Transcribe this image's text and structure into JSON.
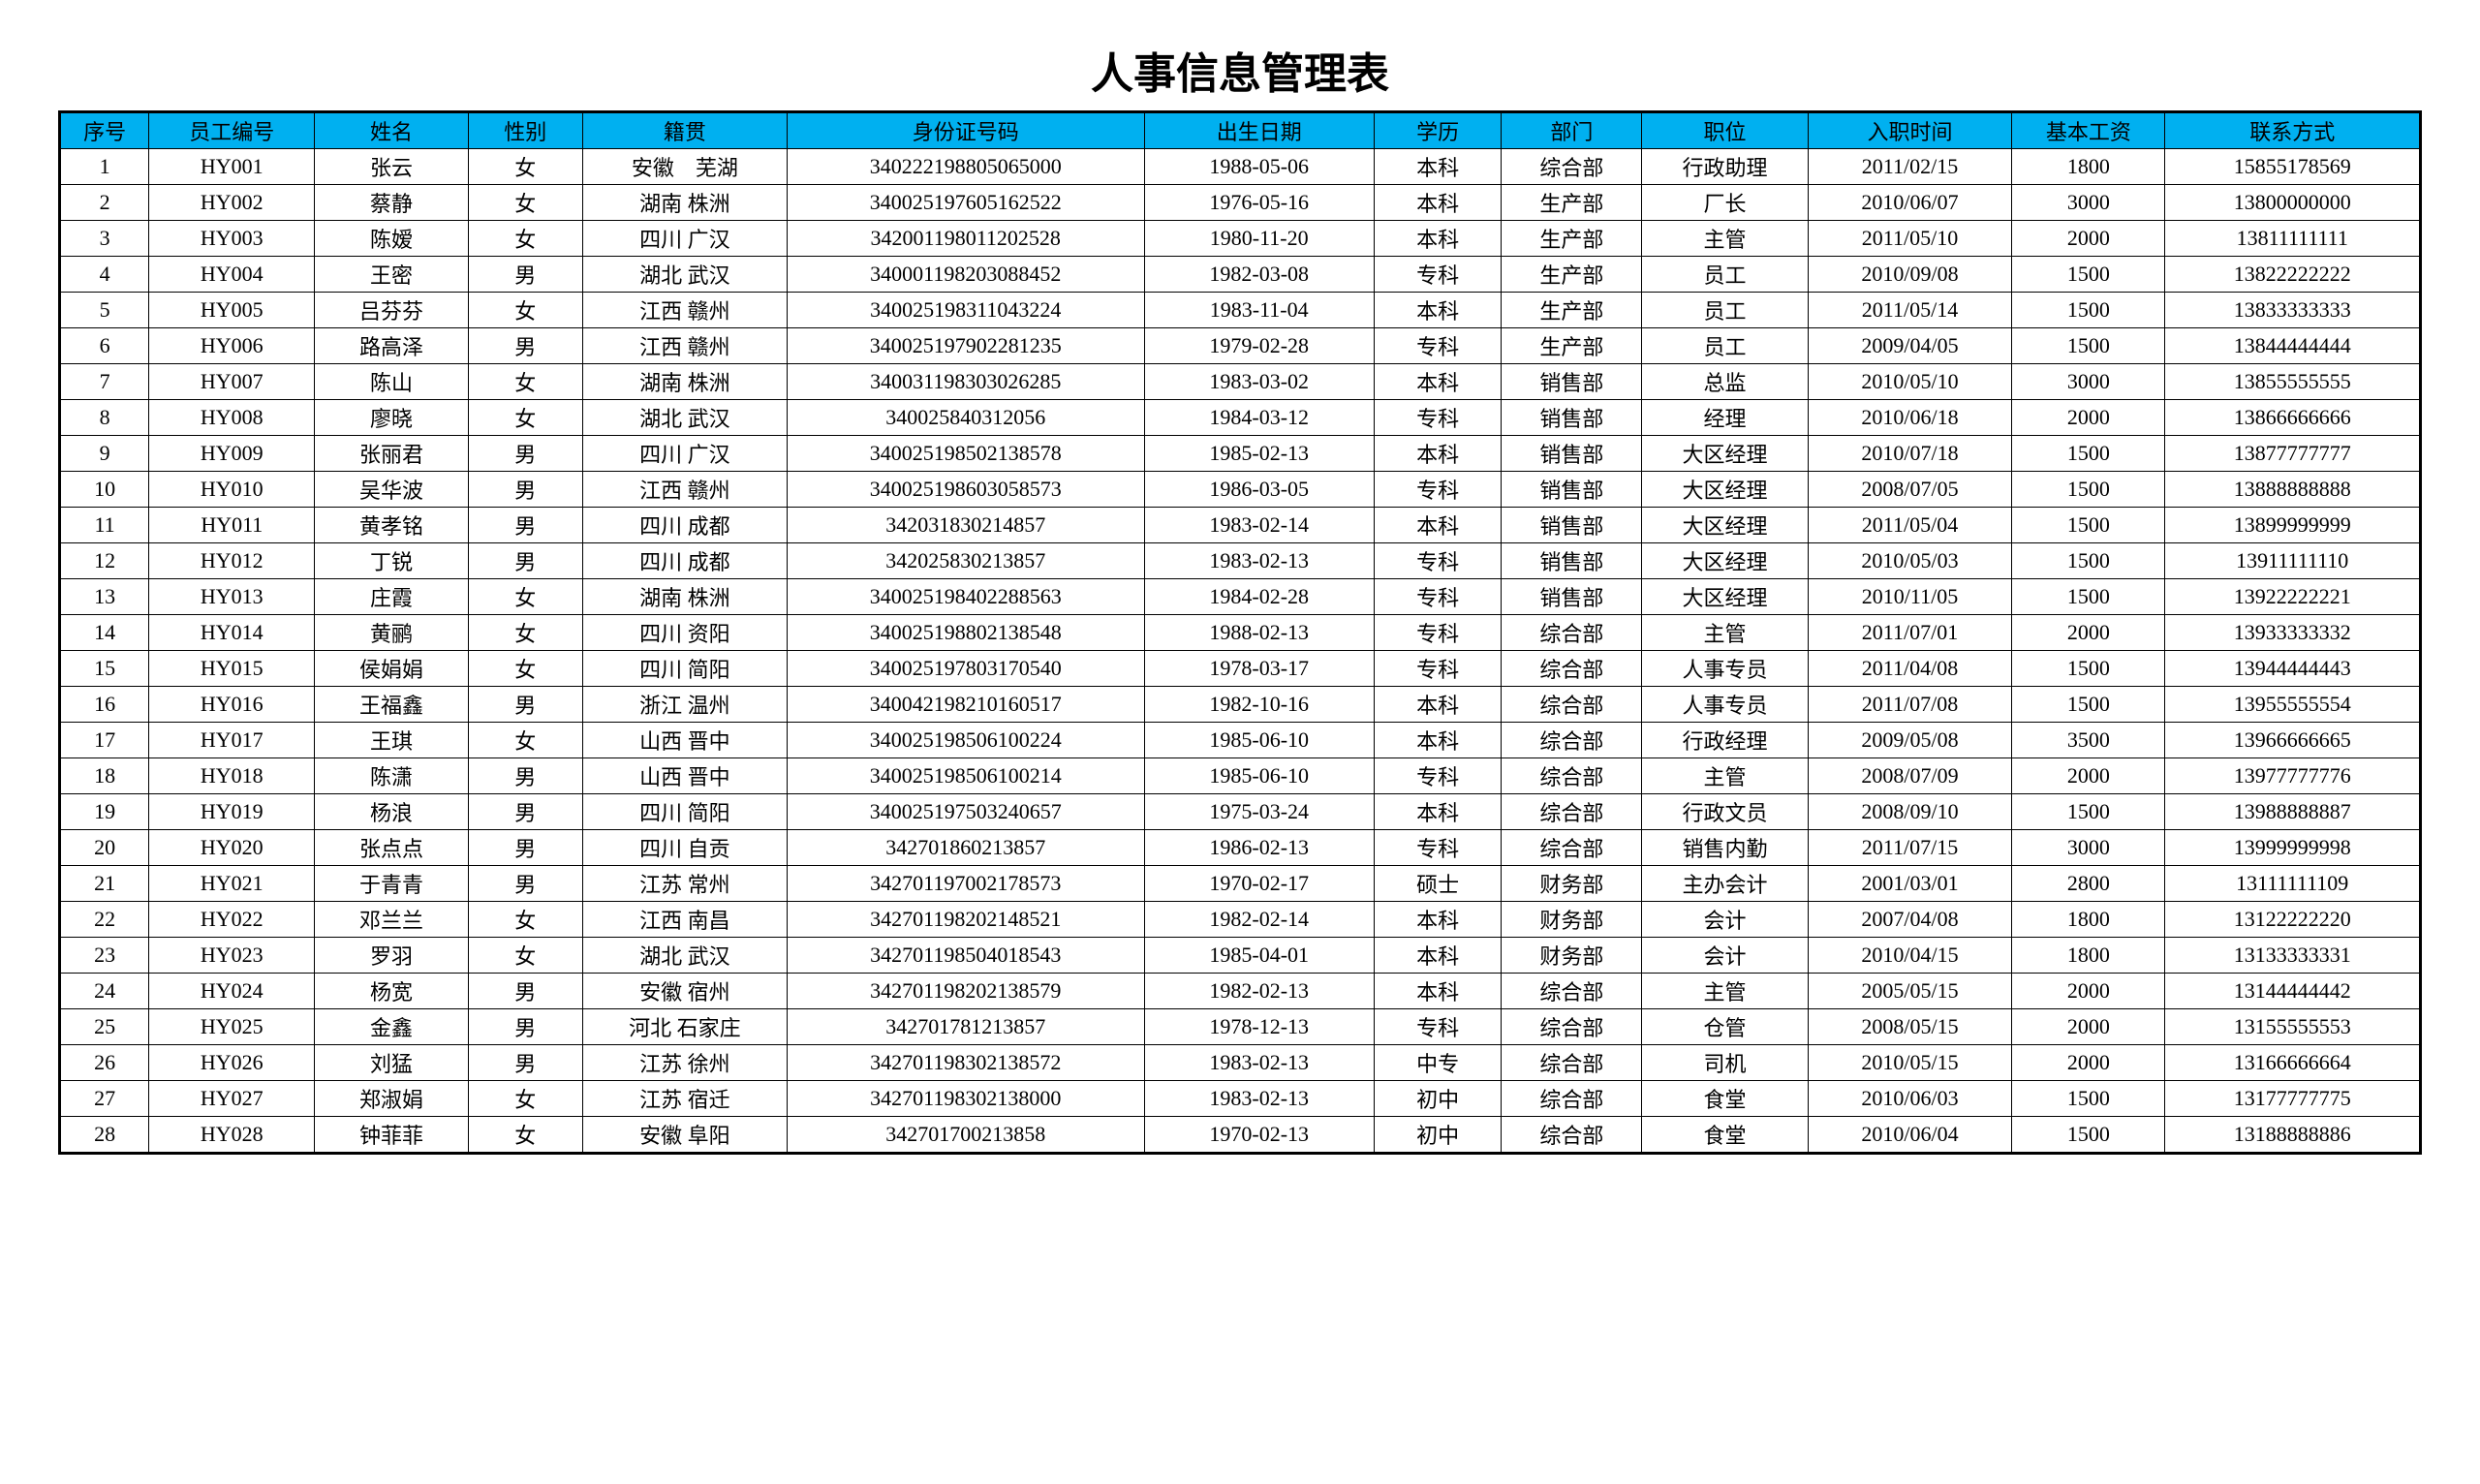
{
  "title": "人事信息管理表",
  "columns": [
    "序号",
    "员工编号",
    "姓名",
    "性别",
    "籍贯",
    "身份证号码",
    "出生日期",
    "学历",
    "部门",
    "职位",
    "入职时间",
    "基本工资",
    "联系方式"
  ],
  "col_classes": [
    "col-seq",
    "col-id",
    "col-name",
    "col-gender",
    "col-origin",
    "col-idcard",
    "col-birth",
    "col-edu",
    "col-dept",
    "col-pos",
    "col-hire",
    "col-salary",
    "col-contact"
  ],
  "rows": [
    [
      "1",
      "HY001",
      "张云",
      "女",
      "安徽　芜湖",
      "340222198805065000",
      "1988-05-06",
      "本科",
      "综合部",
      "行政助理",
      "2011/02/15",
      "1800",
      "15855178569"
    ],
    [
      "2",
      "HY002",
      "蔡静",
      "女",
      "湖南 株洲",
      "340025197605162522",
      "1976-05-16",
      "本科",
      "生产部",
      "厂长",
      "2010/06/07",
      "3000",
      "13800000000"
    ],
    [
      "3",
      "HY003",
      "陈嫒",
      "女",
      "四川 广汉",
      "342001198011202528",
      "1980-11-20",
      "本科",
      "生产部",
      "主管",
      "2011/05/10",
      "2000",
      "13811111111"
    ],
    [
      "4",
      "HY004",
      "王密",
      "男",
      "湖北 武汉",
      "340001198203088452",
      "1982-03-08",
      "专科",
      "生产部",
      "员工",
      "2010/09/08",
      "1500",
      "13822222222"
    ],
    [
      "5",
      "HY005",
      "吕芬芬",
      "女",
      "江西 赣州",
      "340025198311043224",
      "1983-11-04",
      "本科",
      "生产部",
      "员工",
      "2011/05/14",
      "1500",
      "13833333333"
    ],
    [
      "6",
      "HY006",
      "路高泽",
      "男",
      "江西 赣州",
      "340025197902281235",
      "1979-02-28",
      "专科",
      "生产部",
      "员工",
      "2009/04/05",
      "1500",
      "13844444444"
    ],
    [
      "7",
      "HY007",
      "陈山",
      "女",
      "湖南 株洲",
      "340031198303026285",
      "1983-03-02",
      "本科",
      "销售部",
      "总监",
      "2010/05/10",
      "3000",
      "13855555555"
    ],
    [
      "8",
      "HY008",
      "廖晓",
      "女",
      "湖北 武汉",
      "340025840312056",
      "1984-03-12",
      "专科",
      "销售部",
      "经理",
      "2010/06/18",
      "2000",
      "13866666666"
    ],
    [
      "9",
      "HY009",
      "张丽君",
      "男",
      "四川 广汉",
      "340025198502138578",
      "1985-02-13",
      "本科",
      "销售部",
      "大区经理",
      "2010/07/18",
      "1500",
      "13877777777"
    ],
    [
      "10",
      "HY010",
      "吴华波",
      "男",
      "江西 赣州",
      "340025198603058573",
      "1986-03-05",
      "专科",
      "销售部",
      "大区经理",
      "2008/07/05",
      "1500",
      "13888888888"
    ],
    [
      "11",
      "HY011",
      "黄孝铭",
      "男",
      "四川 成都",
      "342031830214857",
      "1983-02-14",
      "本科",
      "销售部",
      "大区经理",
      "2011/05/04",
      "1500",
      "13899999999"
    ],
    [
      "12",
      "HY012",
      "丁锐",
      "男",
      "四川 成都",
      "342025830213857",
      "1983-02-13",
      "专科",
      "销售部",
      "大区经理",
      "2010/05/03",
      "1500",
      "13911111110"
    ],
    [
      "13",
      "HY013",
      "庄霞",
      "女",
      "湖南 株洲",
      "340025198402288563",
      "1984-02-28",
      "专科",
      "销售部",
      "大区经理",
      "2010/11/05",
      "1500",
      "13922222221"
    ],
    [
      "14",
      "HY014",
      "黄鹂",
      "女",
      "四川 资阳",
      "340025198802138548",
      "1988-02-13",
      "专科",
      "综合部",
      "主管",
      "2011/07/01",
      "2000",
      "13933333332"
    ],
    [
      "15",
      "HY015",
      "侯娟娟",
      "女",
      "四川 简阳",
      "340025197803170540",
      "1978-03-17",
      "专科",
      "综合部",
      "人事专员",
      "2011/04/08",
      "1500",
      "13944444443"
    ],
    [
      "16",
      "HY016",
      "王福鑫",
      "男",
      "浙江 温州",
      "340042198210160517",
      "1982-10-16",
      "本科",
      "综合部",
      "人事专员",
      "2011/07/08",
      "1500",
      "13955555554"
    ],
    [
      "17",
      "HY017",
      "王琪",
      "女",
      "山西 晋中",
      "340025198506100224",
      "1985-06-10",
      "本科",
      "综合部",
      "行政经理",
      "2009/05/08",
      "3500",
      "13966666665"
    ],
    [
      "18",
      "HY018",
      "陈潇",
      "男",
      "山西 晋中",
      "340025198506100214",
      "1985-06-10",
      "专科",
      "综合部",
      "主管",
      "2008/07/09",
      "2000",
      "13977777776"
    ],
    [
      "19",
      "HY019",
      "杨浪",
      "男",
      "四川 简阳",
      "340025197503240657",
      "1975-03-24",
      "本科",
      "综合部",
      "行政文员",
      "2008/09/10",
      "1500",
      "13988888887"
    ],
    [
      "20",
      "HY020",
      "张点点",
      "男",
      "四川 自贡",
      "342701860213857",
      "1986-02-13",
      "专科",
      "综合部",
      "销售内勤",
      "2011/07/15",
      "3000",
      "13999999998"
    ],
    [
      "21",
      "HY021",
      "于青青",
      "男",
      "江苏 常州",
      "342701197002178573",
      "1970-02-17",
      "硕士",
      "财务部",
      "主办会计",
      "2001/03/01",
      "2800",
      "13111111109"
    ],
    [
      "22",
      "HY022",
      "邓兰兰",
      "女",
      "江西 南昌",
      "342701198202148521",
      "1982-02-14",
      "本科",
      "财务部",
      "会计",
      "2007/04/08",
      "1800",
      "13122222220"
    ],
    [
      "23",
      "HY023",
      "罗羽",
      "女",
      "湖北 武汉",
      "342701198504018543",
      "1985-04-01",
      "本科",
      "财务部",
      "会计",
      "2010/04/15",
      "1800",
      "13133333331"
    ],
    [
      "24",
      "HY024",
      "杨宽",
      "男",
      "安徽 宿州",
      "342701198202138579",
      "1982-02-13",
      "本科",
      "综合部",
      "主管",
      "2005/05/15",
      "2000",
      "13144444442"
    ],
    [
      "25",
      "HY025",
      "金鑫",
      "男",
      "河北 石家庄",
      "342701781213857",
      "1978-12-13",
      "专科",
      "综合部",
      "仓管",
      "2008/05/15",
      "2000",
      "13155555553"
    ],
    [
      "26",
      "HY026",
      "刘猛",
      "男",
      "江苏 徐州",
      "342701198302138572",
      "1983-02-13",
      "中专",
      "综合部",
      "司机",
      "2010/05/15",
      "2000",
      "13166666664"
    ],
    [
      "27",
      "HY027",
      "郑淑娟",
      "女",
      "江苏 宿迁",
      "342701198302138000",
      "1983-02-13",
      "初中",
      "综合部",
      "食堂",
      "2010/06/03",
      "1500",
      "13177777775"
    ],
    [
      "28",
      "HY028",
      "钟菲菲",
      "女",
      "安徽 阜阳",
      "342701700213858",
      "1970-02-13",
      "初中",
      "综合部",
      "食堂",
      "2010/06/04",
      "1500",
      "13188888886"
    ]
  ],
  "styling": {
    "header_bg": "#00b0f0",
    "border_color": "#000000",
    "title_fontsize": 44,
    "cell_fontsize": 22
  }
}
